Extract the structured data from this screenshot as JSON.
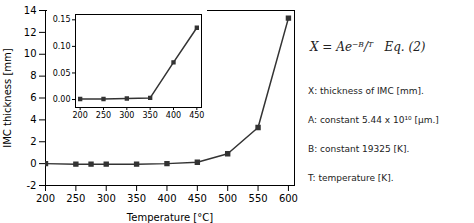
{
  "chart_data": [
    {
      "type": "line",
      "x": [
        200,
        250,
        275,
        300,
        350,
        400,
        450,
        500,
        550,
        600
      ],
      "values": [
        0.0,
        -0.05,
        -0.05,
        -0.05,
        -0.05,
        0.0,
        0.13,
        0.9,
        3.3,
        13.3
      ],
      "color": "#333333",
      "marker": "square",
      "grid": false,
      "xlabel": "Temperature [°C]",
      "ylabel": "IMC thickness [mm]",
      "xlim": [
        200,
        610
      ],
      "ylim": [
        -2,
        14
      ],
      "xticks": [
        200,
        250,
        300,
        350,
        400,
        450,
        500,
        550,
        600
      ],
      "yticks": [
        -2,
        0,
        2,
        4,
        6,
        8,
        10,
        12,
        14
      ],
      "annotations": [
        "X = Ae⁻ᴮ/ᵀ   Eq. (2)",
        "X: thickness of IMC [mm].",
        "A: constant 5.44 x 10¹⁰ [μm.]",
        "B: constant 19325 [K].",
        "T: temperature [K]."
      ]
    },
    {
      "type": "line",
      "x": [
        200,
        250,
        300,
        350,
        400,
        450
      ],
      "values": [
        0.001,
        0.001,
        0.002,
        0.003,
        0.07,
        0.135
      ],
      "color": "#333333",
      "marker": "square",
      "grid": false,
      "xlim": [
        190,
        460
      ],
      "ylim": [
        -0.015,
        0.16
      ],
      "xticks": [
        200,
        250,
        300,
        350,
        400,
        450
      ],
      "yticks": [
        {
          "value": 0,
          "label": "0.00"
        },
        0.05,
        {
          "value": 0.1,
          "label": "0.10"
        },
        0.15
      ]
    }
  ]
}
